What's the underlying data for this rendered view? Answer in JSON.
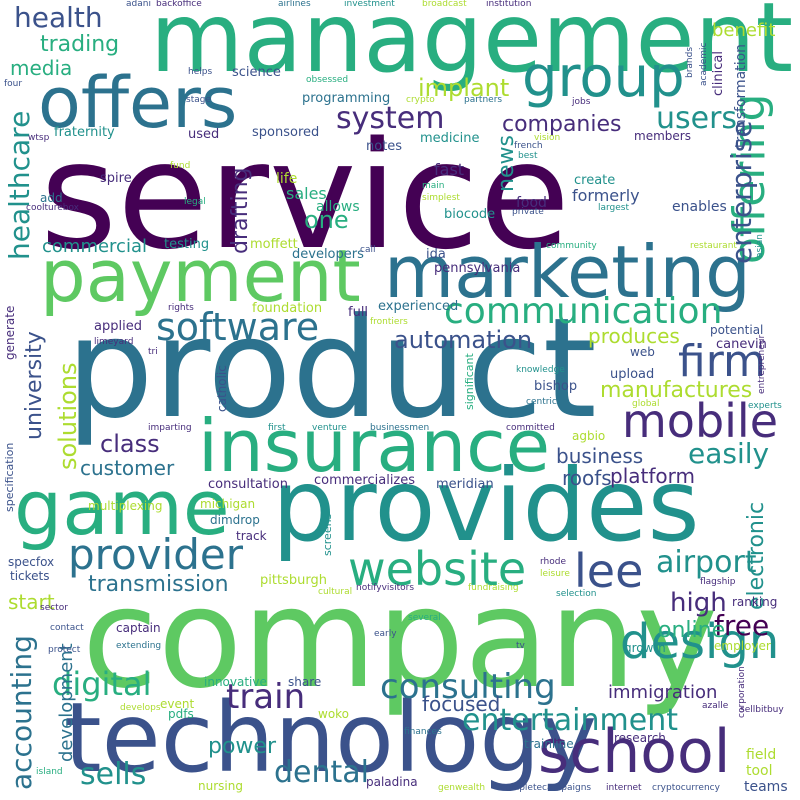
{
  "words": {
    "service": "service",
    "company": "company",
    "product": "product",
    "management": "management",
    "provides": "provides",
    "technology": "technology",
    "insurance": "insurance",
    "payment": "payment",
    "marketing": "marketing",
    "offers": "offers",
    "game": "game",
    "group": "group",
    "school": "school",
    "design": "design",
    "software": "software",
    "mobile": "mobile",
    "website": "website",
    "provider": "provider",
    "communication": "communication",
    "offering": "offering",
    "enterprise": "enterprise",
    "firm": "firm",
    "consulting": "consulting",
    "entertainment": "entertainment",
    "digital": "digital",
    "lee": "lee",
    "airport": "airport",
    "train": "train",
    "dental": "dental",
    "sells": "sells",
    "health": "health",
    "healthcare": "healthcare",
    "trading": "trading",
    "media": "media",
    "users": "users",
    "system": "system",
    "implant": "implant",
    "companies": "companies",
    "automation": "automation",
    "manufactures": "manufactures",
    "solutions": "solutions",
    "university": "university",
    "accounting": "accounting",
    "class": "class",
    "customer": "customer",
    "business": "business",
    "easily": "easily",
    "platform": "platform",
    "free": "free",
    "high": "high",
    "online": "online",
    "transmission": "transmission",
    "start": "start",
    "power": "power",
    "focused": "focused",
    "immigration": "immigration",
    "news": "news",
    "drafting": "drafting",
    "one": "one",
    "commercial": "commercial",
    "electronic": "electronic",
    "benefit": "benefit",
    "development": "development",
    "produces": "produces",
    "roofs": "roofs",
    "fast": "fast",
    "food": "food",
    "sales": "sales",
    "formerly": "formerly",
    "create": "create",
    "enables": "enables",
    "allows": "allows",
    "life": "life",
    "developers": "developers",
    "testing": "testing",
    "moffett": "moffett",
    "ida": "ida",
    "biocode": "biocode",
    "pennsylvania": "pennsylvania",
    "full": "full",
    "experienced": "experienced",
    "foundation": "foundation",
    "applied": "applied",
    "upload": "upload",
    "bishop": "bishop",
    "canevin": "canevin",
    "potential": "potential",
    "web": "web",
    "catholic": "catholic",
    "agbio": "agbio",
    "consultation": "consultation",
    "commercializes": "commercializes",
    "meridian": "meridian",
    "michigan": "michigan",
    "dimdrop": "dimdrop",
    "track": "track",
    "multiplexing": "multiplexing",
    "specfox": "specfox",
    "tickets": "tickets",
    "pittsburgh": "pittsburgh",
    "captain": "captain",
    "share": "share",
    "innovative": "innovative",
    "event": "event",
    "pdfs": "pdfs",
    "nursing": "nursing",
    "woko": "woko",
    "paladina": "paladina",
    "trainline": "trainline",
    "research": "research",
    "growth": "growth",
    "employer": "employer",
    "ranking": "ranking",
    "teams": "teams",
    "tool": "tool",
    "field": "field",
    "science": "science",
    "programming": "programming",
    "sponsored": "sponsored",
    "used": "used",
    "notes": "notes",
    "medicine": "medicine",
    "fraternity": "fraternity",
    "members": "members",
    "spire": "spire",
    "add": "add",
    "coolturebox": "coolturebox",
    "legal": "legal",
    "fund": "fund",
    "main": "main",
    "simplest": "simplest",
    "largest": "largest",
    "private": "private",
    "french": "french",
    "best": "best",
    "vision": "vision",
    "jobs": "jobs",
    "crypto": "crypto",
    "partners": "partners",
    "obsessed": "obsessed",
    "helps": "helps",
    "stage": "stage",
    "four": "four",
    "wtsp": "wtsp",
    "adani": "adani",
    "backoffice": "backoffice",
    "airlines": "airlines",
    "investment": "investment",
    "broadcast": "broadcast",
    "institution": "institution",
    "brands": "brands",
    "academic": "academic",
    "clinical": "clinical",
    "transformation": "transformation",
    "call": "call",
    "community": "community",
    "restaurant": "restaurant",
    "asian": "asian",
    "rights": "rights",
    "frontiers": "frontiers",
    "limeyard": "limeyard",
    "generate": "generate",
    "tri": "tri",
    "knowledge": "knowledge",
    "significant": "significant",
    "centric": "centric",
    "global": "global",
    "entrepreneur": "entrepreneur",
    "experts": "experts",
    "imparting": "imparting",
    "first": "first",
    "venture": "venture",
    "businessmen": "businessmen",
    "committed": "committed",
    "specification": "specification",
    "screens": "screens",
    "cultural": "cultural",
    "notifyvisitors": "notifyvisitors",
    "fundraising": "fundraising",
    "rhode": "rhode",
    "leisure": "leisure",
    "selection": "selection",
    "flagship": "flagship",
    "sector": "sector",
    "contact": "contact",
    "protect": "protect",
    "several": "several",
    "extending": "extending",
    "early": "early",
    "tv": "tv",
    "develops": "develops",
    "finances": "finances",
    "azalle": "azalle",
    "corporation": "corporation",
    "sellbitbuy": "sellbitbuy",
    "island": "island",
    "genwealth": "genwealth",
    "completecampaigns": "completecampaigns",
    "internet": "internet",
    "cryptocurrency": "cryptocurrency"
  }
}
